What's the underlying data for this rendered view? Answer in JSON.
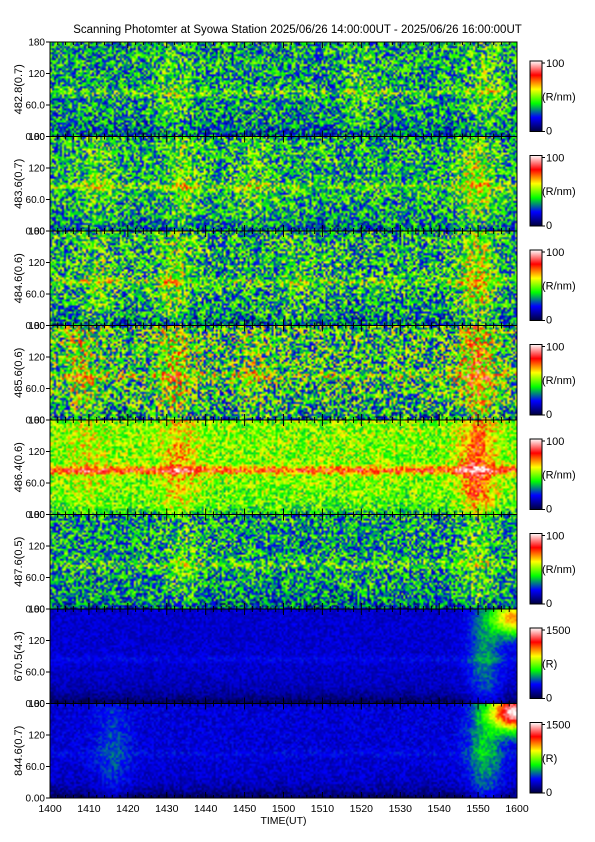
{
  "title": "Scanning Photomter at Syowa Station 2025/06/26 14:00:00UT - 2025/06/26 16:00:00UT",
  "chart_data": {
    "type": "heatmap",
    "xlabel": "TIME(UT)",
    "x_ticks": [
      "1400",
      "1410",
      "1420",
      "1430",
      "1440",
      "1450",
      "1500",
      "1510",
      "1520",
      "1530",
      "1540",
      "1550",
      "1600"
    ],
    "x_range_minutes": [
      0,
      120
    ],
    "y_ticks": [
      "0.00",
      "60.0",
      "120",
      "180"
    ],
    "y_range": [
      0,
      180
    ],
    "colormap": [
      "#00003c",
      "#0000ff",
      "#00ff00",
      "#ffff00",
      "#ff0000",
      "#ffffff"
    ],
    "panels": [
      {
        "ylabel": "482.8(0.7)",
        "cb_max": "100",
        "cb_min": "0",
        "cb_unit": "(R/nm)",
        "base": 0.34,
        "band": 0.1,
        "noise": 0.22,
        "bright": [
          [
            32,
            0.1
          ],
          [
            80,
            0.08
          ],
          [
            112,
            0.12
          ]
        ]
      },
      {
        "ylabel": "483.6(0.7)",
        "cb_max": "100",
        "cb_min": "0",
        "cb_unit": "(R/nm)",
        "base": 0.36,
        "band": 0.12,
        "noise": 0.22,
        "bright": [
          [
            12,
            0.1
          ],
          [
            34,
            0.12
          ],
          [
            52,
            0.08
          ],
          [
            110,
            0.18
          ]
        ]
      },
      {
        "ylabel": "484.6(0.6)",
        "cb_max": "100",
        "cb_min": "0",
        "cb_unit": "(R/nm)",
        "base": 0.36,
        "band": 0.12,
        "noise": 0.24,
        "bright": [
          [
            12,
            0.1
          ],
          [
            32,
            0.14
          ],
          [
            64,
            0.06
          ],
          [
            110,
            0.22
          ]
        ]
      },
      {
        "ylabel": "485.6(0.6)",
        "cb_max": "100",
        "cb_min": "0",
        "cb_unit": "(R/nm)",
        "base": 0.4,
        "band": 0.1,
        "noise": 0.28,
        "bright": [
          [
            8,
            0.16
          ],
          [
            32,
            0.18
          ],
          [
            52,
            0.08
          ],
          [
            110,
            0.28
          ]
        ]
      },
      {
        "ylabel": "486.4(0.6)",
        "cb_max": "100",
        "cb_min": "0",
        "cb_unit": "(R/nm)",
        "base": 0.5,
        "band": 0.28,
        "noise": 0.16,
        "bright": [
          [
            10,
            0.08
          ],
          [
            33,
            0.16
          ],
          [
            110,
            0.3
          ]
        ]
      },
      {
        "ylabel": "487.6(0.5)",
        "cb_max": "100",
        "cb_min": "0",
        "cb_unit": "(R/nm)",
        "base": 0.34,
        "band": 0.1,
        "noise": 0.22,
        "bright": [
          [
            34,
            0.1
          ],
          [
            110,
            0.12
          ]
        ]
      },
      {
        "ylabel": "670.5(4.3)",
        "cb_max": "1500",
        "cb_min": "0",
        "cb_unit": "(R)",
        "base": 0.15,
        "band": 0.04,
        "noise": 0.05,
        "bright": [
          [
            112,
            0.16
          ]
        ],
        "edge": 0.55
      },
      {
        "ylabel": "844.6(0.7)",
        "cb_max": "1500",
        "cb_min": "0",
        "cb_unit": "(R)",
        "base": 0.16,
        "band": 0.03,
        "noise": 0.06,
        "bright": [
          [
            16,
            0.1
          ],
          [
            112,
            0.2
          ]
        ],
        "edge": 0.85
      }
    ]
  }
}
